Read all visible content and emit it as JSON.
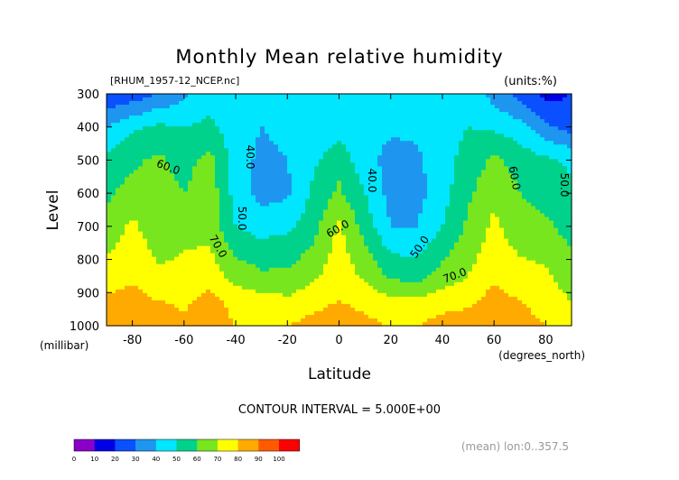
{
  "chart_data": {
    "type": "heatmap",
    "title": "Monthly Mean relative humidity",
    "source_label": "[RHUM_1957-12_NCEP.nc]",
    "units_label": "(units:%)",
    "xlabel": "Latitude",
    "x_unit_label": "(degrees_north)",
    "ylabel": "Level",
    "y_unit_label": "(millibar)",
    "xlim": [
      -90,
      90
    ],
    "ylim": [
      1000,
      300
    ],
    "x_ticks": [
      -80,
      -60,
      -40,
      -20,
      0,
      20,
      40,
      60,
      80
    ],
    "y_ticks": [
      300,
      400,
      500,
      600,
      700,
      800,
      900,
      1000
    ],
    "x_tick_labels": [
      "-80",
      "-60",
      "-40",
      "-20",
      "0",
      "20",
      "40",
      "60",
      "80"
    ],
    "y_tick_labels": [
      "300",
      "400",
      "500",
      "600",
      "700",
      "800",
      "900",
      "1000"
    ],
    "contour_interval_text": "CONTOUR INTERVAL = 5.000E+00",
    "footer_note": "(mean) lon:0..357.5",
    "contour_labels": [
      "60.0",
      "40.0",
      "50.0",
      "70.0",
      "60.0",
      "40.0",
      "50.0",
      "70.0",
      "60.0",
      "50.0"
    ],
    "colorbar": {
      "ticks": [
        "0",
        "10",
        "20",
        "30",
        "40",
        "50",
        "60",
        "70",
        "80",
        "90",
        "100"
      ],
      "colors": [
        "#8a00c8",
        "#0000e6",
        "#0a50ff",
        "#1e96f0",
        "#00e6ff",
        "#00d28c",
        "#78e61e",
        "#ffff00",
        "#ffaa00",
        "#ff5a00",
        "#ff0000"
      ]
    },
    "latitudes": [
      -90,
      -80,
      -70,
      -60,
      -50,
      -40,
      -30,
      -20,
      -10,
      0,
      10,
      20,
      30,
      40,
      50,
      60,
      70,
      80,
      90
    ],
    "levels": [
      1000,
      925,
      850,
      700,
      600,
      500,
      400,
      300
    ],
    "values": [
      [
        88,
        87,
        88,
        82,
        86,
        80,
        79,
        80,
        84,
        88,
        84,
        78,
        80,
        84,
        85,
        88,
        84,
        80,
        78
      ],
      [
        82,
        84,
        80,
        78,
        84,
        76,
        74,
        72,
        76,
        80,
        76,
        72,
        72,
        76,
        78,
        84,
        80,
        76,
        70
      ],
      [
        74,
        78,
        72,
        72,
        76,
        66,
        62,
        62,
        68,
        76,
        68,
        58,
        56,
        64,
        70,
        78,
        74,
        72,
        64
      ],
      [
        64,
        72,
        64,
        68,
        66,
        50,
        46,
        48,
        56,
        72,
        56,
        40,
        40,
        50,
        62,
        72,
        64,
        62,
        56
      ],
      [
        58,
        64,
        64,
        60,
        66,
        46,
        36,
        38,
        52,
        62,
        50,
        36,
        36,
        46,
        58,
        68,
        60,
        56,
        52
      ],
      [
        52,
        58,
        62,
        56,
        64,
        44,
        38,
        40,
        48,
        56,
        44,
        36,
        38,
        46,
        54,
        62,
        56,
        52,
        48
      ],
      [
        40,
        48,
        52,
        50,
        52,
        44,
        40,
        42,
        44,
        46,
        44,
        42,
        42,
        46,
        50,
        48,
        44,
        32,
        26
      ],
      [
        20,
        24,
        30,
        38,
        46,
        46,
        44,
        44,
        46,
        48,
        46,
        44,
        44,
        46,
        48,
        36,
        26,
        16,
        20
      ]
    ]
  }
}
